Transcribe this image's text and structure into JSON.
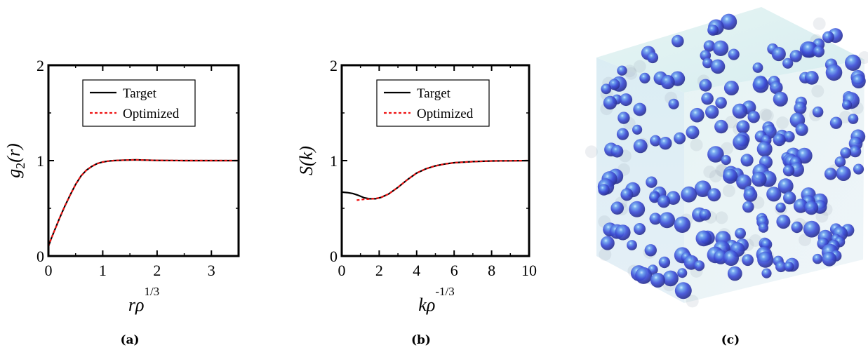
{
  "chart_data": [
    {
      "type": "line",
      "xlabel": "rρ",
      "xlabel_sup": "1/3",
      "ylabel": "g",
      "ylabel_sub": "2",
      "ylabel_tail": "(r)",
      "xlim": [
        0,
        3.5
      ],
      "ylim": [
        0,
        2
      ],
      "xticks": [
        "0",
        "1",
        "2",
        "3"
      ],
      "yticks": [
        "0",
        "1",
        "2"
      ],
      "legend": [
        "Target",
        "Optimized"
      ],
      "legend_position": "top-center",
      "caption": "(a)",
      "series": [
        {
          "name": "Target",
          "color": "#000000",
          "style": "solid",
          "x": [
            0,
            0.05,
            0.1,
            0.2,
            0.3,
            0.4,
            0.5,
            0.6,
            0.7,
            0.8,
            0.9,
            1.0,
            1.1,
            1.2,
            1.4,
            1.6,
            1.8,
            2.0,
            2.5,
            3.0,
            3.5
          ],
          "y": [
            0.1,
            0.18,
            0.25,
            0.39,
            0.52,
            0.64,
            0.75,
            0.84,
            0.9,
            0.94,
            0.97,
            0.985,
            0.995,
            1.0,
            1.005,
            1.008,
            1.005,
            1.002,
            1.0,
            1.0,
            1.0
          ]
        },
        {
          "name": "Optimized",
          "color": "#ee1111",
          "style": "dashed",
          "x": [
            0,
            0.05,
            0.1,
            0.2,
            0.3,
            0.4,
            0.5,
            0.6,
            0.7,
            0.8,
            0.9,
            1.0,
            1.1,
            1.2,
            1.4,
            1.6,
            1.8,
            2.0,
            2.5,
            3.0,
            3.5
          ],
          "y": [
            0.1,
            0.18,
            0.25,
            0.39,
            0.52,
            0.64,
            0.75,
            0.84,
            0.9,
            0.94,
            0.97,
            0.985,
            0.995,
            1.0,
            1.005,
            1.008,
            1.005,
            1.002,
            1.0,
            1.0,
            1.0
          ]
        }
      ]
    },
    {
      "type": "line",
      "xlabel": "kρ",
      "xlabel_sup": "-1/3",
      "ylabel": "S(k)",
      "ylabel_sub": "",
      "ylabel_tail": "",
      "xlim": [
        0,
        10
      ],
      "ylim": [
        0,
        2
      ],
      "xticks": [
        "0",
        "2",
        "4",
        "6",
        "8",
        "10"
      ],
      "yticks": [
        "0",
        "1",
        "2"
      ],
      "legend": [
        "Target",
        "Optimized"
      ],
      "legend_position": "top-center",
      "caption": "(b)",
      "series": [
        {
          "name": "Target",
          "color": "#000000",
          "style": "solid",
          "x": [
            0,
            0.3,
            0.6,
            0.9,
            1.2,
            1.5,
            1.8,
            2.1,
            2.5,
            3.0,
            3.5,
            4.0,
            4.5,
            5.0,
            5.5,
            6.0,
            7.0,
            8.0,
            9.0,
            10.0
          ],
          "y": [
            0.67,
            0.665,
            0.655,
            0.635,
            0.61,
            0.6,
            0.6,
            0.615,
            0.65,
            0.72,
            0.8,
            0.87,
            0.915,
            0.945,
            0.965,
            0.978,
            0.99,
            0.996,
            0.998,
            1.0
          ]
        },
        {
          "name": "Optimized",
          "color": "#ee1111",
          "style": "dashed",
          "x": [
            0.8,
            1.0,
            1.2,
            1.5,
            1.8,
            2.1,
            2.5,
            3.0,
            3.5,
            4.0,
            4.5,
            5.0,
            5.5,
            6.0,
            7.0,
            8.0,
            9.0,
            10.0
          ],
          "y": [
            0.585,
            0.59,
            0.595,
            0.598,
            0.602,
            0.615,
            0.65,
            0.72,
            0.8,
            0.87,
            0.915,
            0.945,
            0.965,
            0.978,
            0.99,
            0.996,
            0.998,
            1.0
          ]
        }
      ]
    }
  ],
  "panel_c": {
    "caption": "(c)",
    "box_face_color": "#d6eef1",
    "sphere_color": "#4a55e0",
    "sphere_highlight": "#9bd4ff",
    "sphere_count": 210
  }
}
